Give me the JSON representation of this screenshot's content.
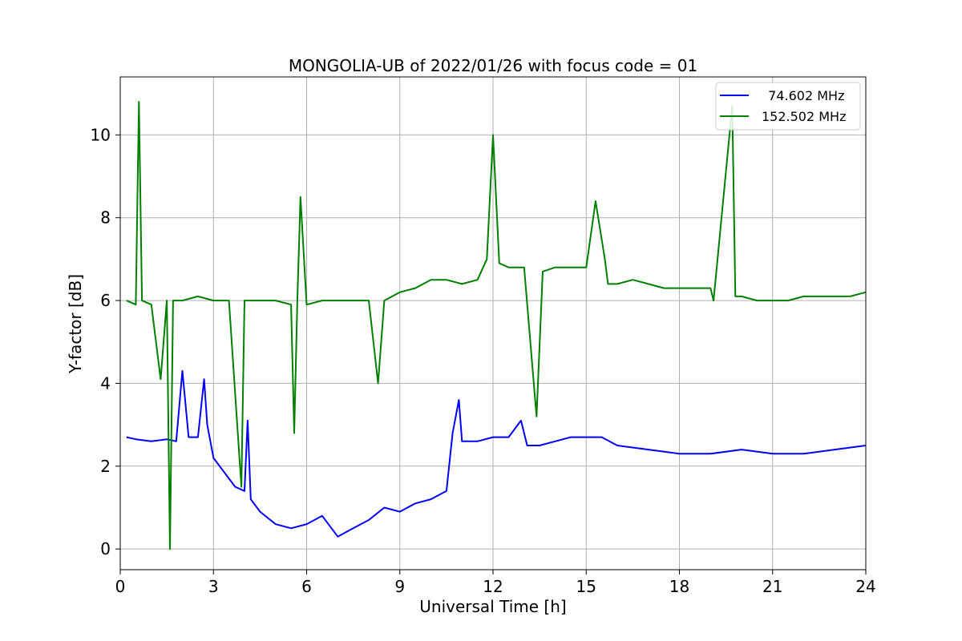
{
  "chart_data": {
    "type": "line",
    "title": "MONGOLIA-UB of 2022/01/26 with focus code = 01",
    "xlabel": "Universal Time [h]",
    "ylabel": "Y-factor [dB]",
    "xlim": [
      0,
      24
    ],
    "ylim": [
      -0.5,
      11.4
    ],
    "xticks": [
      0,
      3,
      6,
      9,
      12,
      15,
      18,
      21,
      24
    ],
    "yticks": [
      0,
      2,
      4,
      6,
      8,
      10
    ],
    "grid": true,
    "legend_position": "top-right",
    "series": [
      {
        "name": "  74.602 MHz",
        "color": "#0000ff",
        "points": [
          [
            0.2,
            2.7
          ],
          [
            0.5,
            2.65
          ],
          [
            1.0,
            2.6
          ],
          [
            1.5,
            2.65
          ],
          [
            1.8,
            2.6
          ],
          [
            2.0,
            4.3
          ],
          [
            2.1,
            3.5
          ],
          [
            2.2,
            2.7
          ],
          [
            2.5,
            2.7
          ],
          [
            2.7,
            4.1
          ],
          [
            2.8,
            3.0
          ],
          [
            3.0,
            2.2
          ],
          [
            3.3,
            1.9
          ],
          [
            3.7,
            1.5
          ],
          [
            4.0,
            1.4
          ],
          [
            4.1,
            3.1
          ],
          [
            4.2,
            1.2
          ],
          [
            4.5,
            0.9
          ],
          [
            5.0,
            0.6
          ],
          [
            5.5,
            0.5
          ],
          [
            6.0,
            0.6
          ],
          [
            6.5,
            0.8
          ],
          [
            7.0,
            0.3
          ],
          [
            7.5,
            0.5
          ],
          [
            8.0,
            0.7
          ],
          [
            8.5,
            1.0
          ],
          [
            9.0,
            0.9
          ],
          [
            9.5,
            1.1
          ],
          [
            10.0,
            1.2
          ],
          [
            10.5,
            1.4
          ],
          [
            10.7,
            2.8
          ],
          [
            10.9,
            3.6
          ],
          [
            11.0,
            2.6
          ],
          [
            11.5,
            2.6
          ],
          [
            12.0,
            2.7
          ],
          [
            12.5,
            2.7
          ],
          [
            12.9,
            3.1
          ],
          [
            13.1,
            2.5
          ],
          [
            13.5,
            2.5
          ],
          [
            14.0,
            2.6
          ],
          [
            14.5,
            2.7
          ],
          [
            15.0,
            2.7
          ],
          [
            15.5,
            2.7
          ],
          [
            16.0,
            2.5
          ],
          [
            17.0,
            2.4
          ],
          [
            18.0,
            2.3
          ],
          [
            19.0,
            2.3
          ],
          [
            20.0,
            2.4
          ],
          [
            21.0,
            2.3
          ],
          [
            22.0,
            2.3
          ],
          [
            23.0,
            2.4
          ],
          [
            24.0,
            2.5
          ]
        ]
      },
      {
        "name": "152.502 MHz",
        "color": "#008000",
        "points": [
          [
            0.2,
            6.0
          ],
          [
            0.5,
            5.9
          ],
          [
            0.6,
            10.8
          ],
          [
            0.7,
            6.0
          ],
          [
            1.0,
            5.9
          ],
          [
            1.3,
            4.1
          ],
          [
            1.5,
            6.0
          ],
          [
            1.6,
            0.0
          ],
          [
            1.7,
            6.0
          ],
          [
            2.0,
            6.0
          ],
          [
            2.5,
            6.1
          ],
          [
            3.0,
            6.0
          ],
          [
            3.5,
            6.0
          ],
          [
            3.9,
            1.5
          ],
          [
            4.0,
            6.0
          ],
          [
            4.5,
            6.0
          ],
          [
            5.0,
            6.0
          ],
          [
            5.5,
            5.9
          ],
          [
            5.6,
            2.8
          ],
          [
            5.7,
            6.0
          ],
          [
            5.8,
            8.5
          ],
          [
            6.0,
            5.9
          ],
          [
            6.5,
            6.0
          ],
          [
            7.0,
            6.0
          ],
          [
            7.5,
            6.0
          ],
          [
            8.0,
            6.0
          ],
          [
            8.3,
            4.0
          ],
          [
            8.5,
            6.0
          ],
          [
            9.0,
            6.2
          ],
          [
            9.5,
            6.3
          ],
          [
            10.0,
            6.5
          ],
          [
            10.5,
            6.5
          ],
          [
            11.0,
            6.4
          ],
          [
            11.5,
            6.5
          ],
          [
            11.8,
            7.0
          ],
          [
            12.0,
            10.0
          ],
          [
            12.2,
            6.9
          ],
          [
            12.5,
            6.8
          ],
          [
            13.0,
            6.8
          ],
          [
            13.4,
            3.2
          ],
          [
            13.6,
            6.7
          ],
          [
            14.0,
            6.8
          ],
          [
            14.5,
            6.8
          ],
          [
            15.0,
            6.8
          ],
          [
            15.3,
            8.4
          ],
          [
            15.6,
            7.0
          ],
          [
            15.7,
            6.4
          ],
          [
            16.0,
            6.4
          ],
          [
            16.5,
            6.5
          ],
          [
            17.0,
            6.4
          ],
          [
            17.5,
            6.3
          ],
          [
            18.0,
            6.3
          ],
          [
            18.5,
            6.3
          ],
          [
            19.0,
            6.3
          ],
          [
            19.1,
            6.0
          ],
          [
            19.7,
            10.7
          ],
          [
            19.8,
            6.1
          ],
          [
            20.0,
            6.1
          ],
          [
            20.5,
            6.0
          ],
          [
            21.0,
            6.0
          ],
          [
            21.5,
            6.0
          ],
          [
            22.0,
            6.1
          ],
          [
            22.5,
            6.1
          ],
          [
            23.0,
            6.1
          ],
          [
            23.5,
            6.1
          ],
          [
            24.0,
            6.2
          ]
        ]
      }
    ]
  }
}
